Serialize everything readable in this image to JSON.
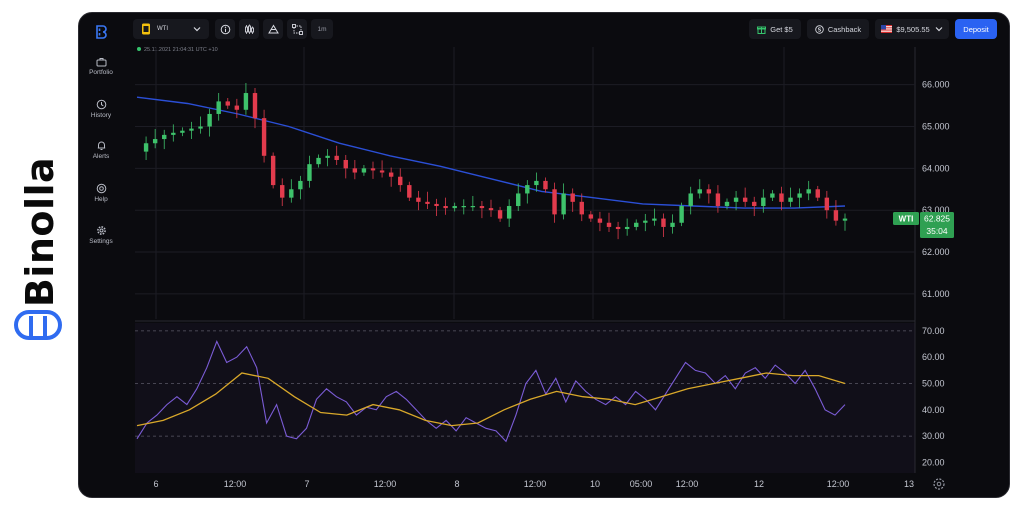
{
  "brand": {
    "name": "Binolla"
  },
  "sidebar": {
    "items": [
      {
        "label": "Portfolio",
        "icon": "briefcase-icon"
      },
      {
        "label": "History",
        "icon": "clock-icon"
      },
      {
        "label": "Alerts",
        "icon": "bell-icon"
      },
      {
        "label": "Help",
        "icon": "help-icon"
      },
      {
        "label": "Settings",
        "icon": "gear-icon"
      }
    ]
  },
  "toolbar": {
    "asset": "WTI",
    "timeframe": "1m",
    "get_bonus": "Get $5",
    "cashback": "Cashback",
    "balance": "$9,505.55",
    "deposit": "Deposit"
  },
  "chart_info": {
    "datetime": "25.11.2021  21:04:31  UTC +10"
  },
  "price_tag": {
    "symbol": "WTI",
    "price": "62.825",
    "timer": "35:04"
  },
  "chart_data": [
    {
      "type": "candlestick",
      "x_labels": [
        "6",
        "12:00",
        "7",
        "12:00",
        "8",
        "12:00",
        "10",
        "05:00",
        "12:00",
        "12",
        "12:00",
        "13"
      ],
      "y_ticks": [
        61.0,
        62.0,
        63.0,
        64.0,
        65.0,
        66.0
      ],
      "ylim": [
        60.4,
        66.9
      ],
      "series": [
        {
          "name": "price",
          "values": [
            64.4,
            64.6,
            64.7,
            64.8,
            64.85,
            64.9,
            64.95,
            65.0,
            65.3,
            65.6,
            65.5,
            65.4,
            65.8,
            65.2,
            64.3,
            63.6,
            63.3,
            63.5,
            63.7,
            64.1,
            64.25,
            64.3,
            64.2,
            64.0,
            63.9,
            64.0,
            63.95,
            63.9,
            63.8,
            63.6,
            63.3,
            63.2,
            63.15,
            63.1,
            63.05,
            63.1,
            63.1,
            63.1,
            63.05,
            63.0,
            62.8,
            63.1,
            63.4,
            63.6,
            63.7,
            63.5,
            62.9,
            63.4,
            63.2,
            62.9,
            62.8,
            62.7,
            62.6,
            62.55,
            62.6,
            62.7,
            62.75,
            62.8,
            62.6,
            62.7,
            63.1,
            63.4,
            63.5,
            63.4,
            63.1,
            63.2,
            63.3,
            63.2,
            63.1,
            63.3,
            63.4,
            63.2,
            63.3,
            63.4,
            63.5,
            63.3,
            63.0,
            62.75,
            62.8
          ]
        },
        {
          "name": "moving-average",
          "values": [
            65.7,
            65.55,
            65.3,
            65.0,
            64.6,
            64.3,
            64.05,
            63.75,
            63.45,
            63.3,
            63.15,
            63.1,
            63.05,
            63.05,
            63.1
          ]
        }
      ]
    },
    {
      "type": "line",
      "y_ticks": [
        20.0,
        30.0,
        40.0,
        50.0,
        60.0,
        70.0
      ],
      "ylim": [
        16,
        73
      ],
      "levels": [
        70,
        50,
        30
      ],
      "series": [
        {
          "name": "oscillator",
          "values": [
            29,
            35,
            38,
            42,
            45,
            42,
            48,
            56,
            66,
            58,
            60,
            64,
            56,
            35,
            42,
            30,
            29,
            33,
            44,
            48,
            45,
            43,
            38,
            41,
            40,
            45,
            47,
            44,
            40,
            36,
            33,
            36,
            32,
            37,
            35,
            33,
            32,
            28,
            38,
            50,
            55,
            46,
            52,
            43,
            51,
            47,
            44,
            42,
            45,
            42,
            47,
            44,
            40,
            46,
            52,
            58,
            55,
            54,
            50,
            53,
            48,
            54,
            56,
            52,
            57,
            54,
            50,
            55,
            48,
            40,
            38,
            42
          ]
        },
        {
          "name": "signal",
          "values": [
            34,
            36,
            40,
            46,
            54,
            52,
            45,
            39,
            38,
            42,
            40,
            36,
            34,
            35,
            40,
            44,
            47,
            45,
            44,
            42,
            45,
            48,
            50,
            52,
            54,
            53,
            53,
            50
          ]
        }
      ]
    }
  ]
}
